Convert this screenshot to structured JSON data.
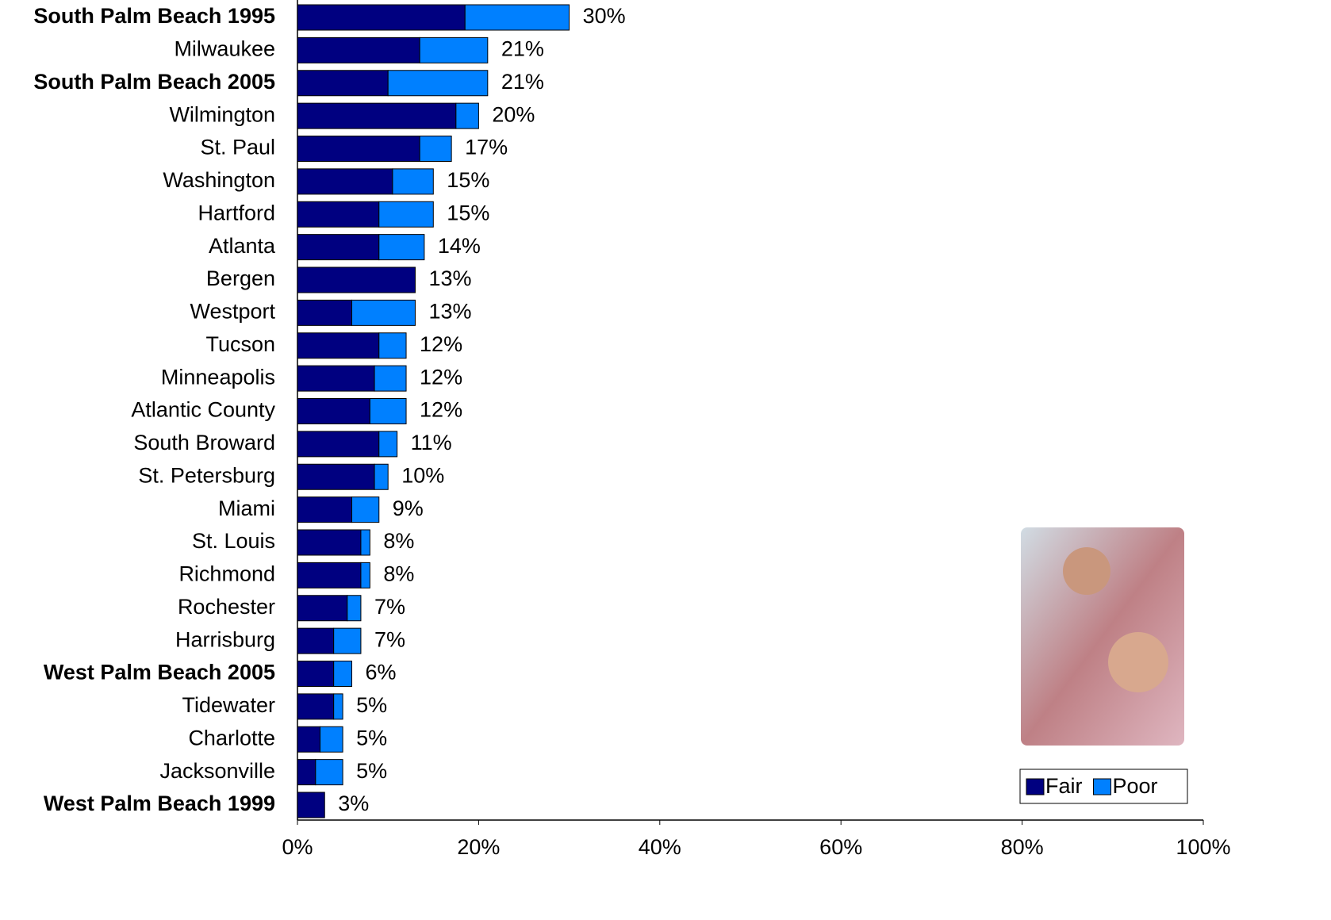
{
  "chart_data": {
    "type": "stacked-barh",
    "categories": [
      "South Palm Beach 1995",
      "Milwaukee",
      "South Palm Beach 2005",
      "Wilmington",
      "St. Paul",
      "Washington",
      "Hartford",
      "Atlanta",
      "Bergen",
      "Westport",
      "Tucson",
      "Minneapolis",
      "Atlantic County",
      "South Broward",
      "St. Petersburg",
      "Miami",
      "St. Louis",
      "Richmond",
      "Rochester",
      "Harrisburg",
      "West Palm Beach 2005",
      "Tidewater",
      "Charlotte",
      "Jacksonville",
      "West Palm Beach 1999"
    ],
    "category_colors": [
      "#ff8080",
      "#000000",
      "#ff0000",
      "#000000",
      "#000000",
      "#000000",
      "#000000",
      "#000000",
      "#000000",
      "#000000",
      "#000000",
      "#000000",
      "#000000",
      "#000000",
      "#000000",
      "#ff0000",
      "#000000",
      "#000000",
      "#000000",
      "#000000",
      "#0000ff",
      "#000000",
      "#000000",
      "#000000",
      "#8080ff"
    ],
    "category_bold": [
      true,
      false,
      true,
      false,
      false,
      false,
      false,
      false,
      false,
      false,
      false,
      false,
      false,
      false,
      false,
      false,
      false,
      false,
      false,
      false,
      true,
      false,
      false,
      false,
      true
    ],
    "series": [
      {
        "name": "Fair",
        "color": "#000080",
        "values": [
          18.5,
          13.5,
          10,
          17.5,
          13.5,
          10.5,
          9,
          9,
          13,
          6,
          9,
          8.5,
          8,
          9,
          8.5,
          6,
          7,
          7,
          5.5,
          4,
          4,
          4,
          2.5,
          2,
          3
        ]
      },
      {
        "name": "Poor",
        "color": "#0080ff",
        "values": [
          11.5,
          7.5,
          11,
          2.5,
          3.5,
          4.5,
          6,
          5,
          0,
          7,
          3,
          3.5,
          4,
          2,
          1.5,
          3,
          1,
          1,
          1.5,
          3,
          2,
          1,
          2.5,
          3,
          0
        ]
      }
    ],
    "totals": [
      30,
      21,
      21,
      20,
      17,
      15,
      15,
      14,
      13,
      13,
      12,
      12,
      12,
      11,
      10,
      9,
      8,
      8,
      7,
      7,
      6,
      5,
      5,
      5,
      3
    ],
    "total_labels": [
      "30%",
      "21%",
      "21%",
      "20%",
      "17%",
      "15%",
      "15%",
      "14%",
      "13%",
      "13%",
      "12%",
      "12%",
      "12%",
      "11%",
      "10%",
      "9%",
      "8%",
      "8%",
      "7%",
      "7%",
      "6%",
      "5%",
      "5%",
      "5%",
      "3%"
    ],
    "xlim": [
      0,
      100
    ],
    "xticks": [
      {
        "value": 0,
        "label": "0%"
      },
      {
        "value": 20,
        "label": "20%"
      },
      {
        "value": 40,
        "label": "40%"
      },
      {
        "value": 60,
        "label": "60%"
      },
      {
        "value": 80,
        "label": "80%"
      },
      {
        "value": 100,
        "label": "100%"
      }
    ],
    "legend": "lower-right"
  }
}
